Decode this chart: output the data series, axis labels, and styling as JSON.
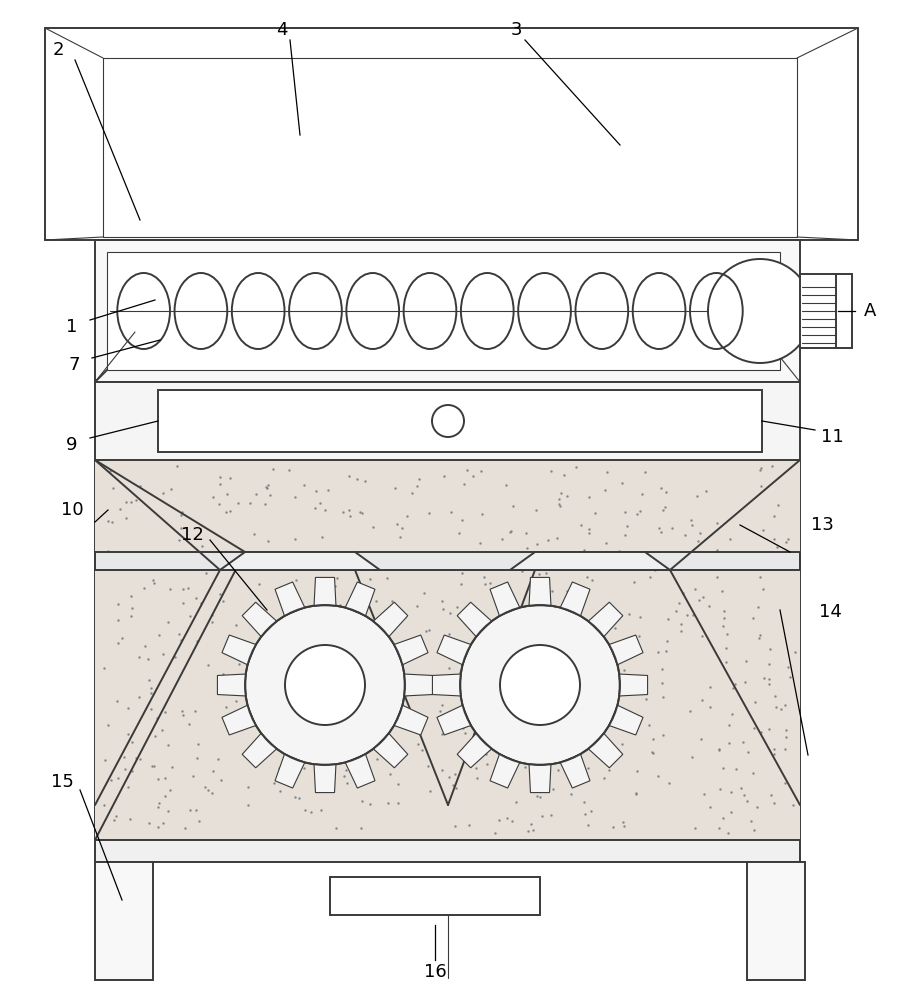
{
  "bg_color": "#ffffff",
  "line_color": "#3a3a3a",
  "lw": 1.4,
  "lw_thin": 0.8,
  "lw_thick": 2.0
}
